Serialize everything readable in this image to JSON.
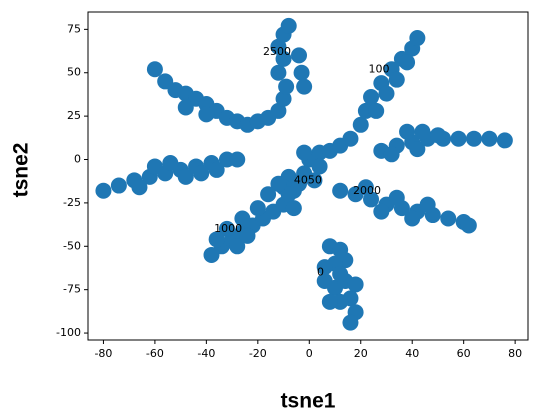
{
  "chart_data": {
    "type": "scatter",
    "xlabel": "tsne1",
    "ylabel": "tsne2",
    "xlim": [
      -86,
      85
    ],
    "ylim": [
      -104,
      85
    ],
    "xticks": [
      -80,
      -60,
      -40,
      -20,
      0,
      20,
      40,
      60,
      80
    ],
    "yticks": [
      -100,
      -75,
      -50,
      -25,
      0,
      25,
      50,
      75
    ],
    "series": [
      {
        "color": "#1f77b4",
        "x": [
          -60,
          -56,
          -52,
          -48,
          -44,
          -40,
          -36,
          -32,
          -28,
          -24,
          -20,
          -16,
          -12,
          -10,
          -9,
          -12,
          -10,
          -12,
          -10,
          -8,
          -4,
          -3,
          -2,
          -48,
          -40,
          -80,
          -74,
          -68,
          -62,
          -56,
          -50,
          -44,
          -38,
          -32,
          -28,
          -60,
          -54,
          -48,
          -42,
          -36,
          -66,
          0,
          4,
          8,
          12,
          16,
          20,
          22,
          24,
          28,
          32,
          36,
          40,
          42,
          26,
          30,
          34,
          38,
          4,
          -2,
          28,
          34,
          40,
          46,
          52,
          58,
          64,
          70,
          76,
          38,
          44,
          50,
          42,
          32,
          12,
          18,
          24,
          30,
          36,
          42,
          48,
          54,
          60,
          62,
          22,
          34,
          46,
          40,
          28,
          -8,
          -4,
          -2,
          2,
          -6,
          -10,
          -38,
          -34,
          -30,
          -26,
          -22,
          -18,
          -14,
          -10,
          -8,
          -12,
          -16,
          -20,
          -26,
          -32,
          -36,
          -28,
          -24,
          -6,
          8,
          12,
          14,
          10,
          6,
          6,
          10,
          14,
          16,
          18,
          16,
          12,
          8,
          18,
          12
        ],
        "values": [
          52,
          45,
          40,
          38,
          35,
          32,
          28,
          24,
          22,
          20,
          22,
          24,
          28,
          35,
          42,
          50,
          58,
          65,
          72,
          77,
          60,
          50,
          42,
          30,
          26,
          -18,
          -15,
          -12,
          -10,
          -8,
          -6,
          -4,
          -2,
          0,
          0,
          -4,
          -2,
          -10,
          -8,
          -6,
          -16,
          0,
          4,
          5,
          8,
          12,
          20,
          28,
          36,
          44,
          52,
          58,
          64,
          70,
          28,
          38,
          46,
          56,
          -4,
          4,
          5,
          8,
          10,
          12,
          12,
          12,
          12,
          12,
          11,
          16,
          16,
          14,
          6,
          3,
          -18,
          -20,
          -23,
          -26,
          -28,
          -30,
          -32,
          -34,
          -36,
          -38,
          -16,
          -22,
          -26,
          -34,
          -30,
          -10,
          -14,
          -8,
          -12,
          -18,
          -16,
          -55,
          -50,
          -46,
          -42,
          -38,
          -34,
          -30,
          -26,
          -20,
          -14,
          -20,
          -28,
          -34,
          -40,
          -46,
          -50,
          -44,
          -28,
          -50,
          -52,
          -58,
          -60,
          -62,
          -70,
          -74,
          -70,
          -80,
          -88,
          -94,
          -82,
          -82,
          -72,
          -66
        ]
      }
    ],
    "annotations": [
      {
        "text": "2500",
        "x": -18,
        "y": 62
      },
      {
        "text": "100",
        "x": 23,
        "y": 52
      },
      {
        "text": "4050",
        "x": -6,
        "y": -12
      },
      {
        "text": "2000",
        "x": 17,
        "y": -18
      },
      {
        "text": "1000",
        "x": -37,
        "y": -40
      },
      {
        "text": "0",
        "x": 3,
        "y": -65
      }
    ]
  }
}
